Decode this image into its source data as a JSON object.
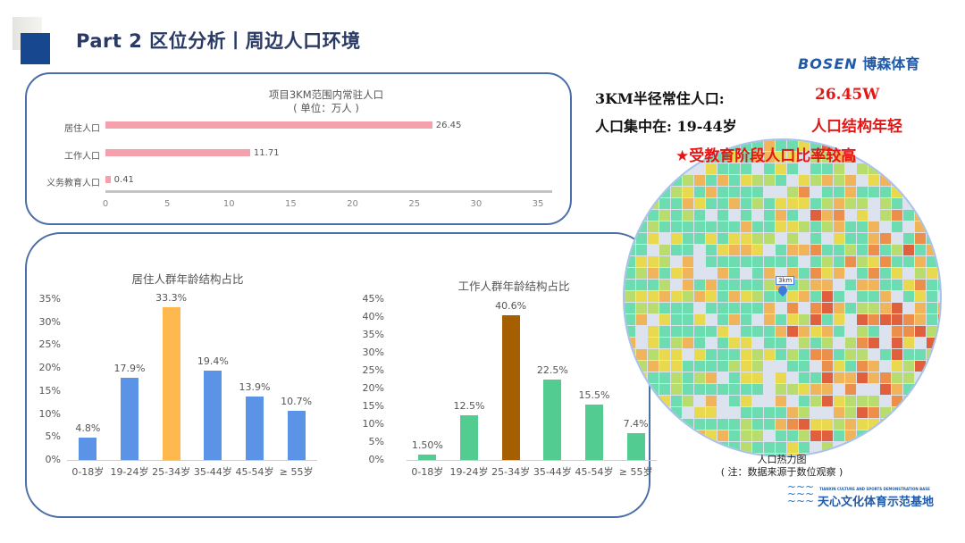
{
  "header": {
    "title": "Part 2 区位分析丨周边人口环境"
  },
  "logo_top": {
    "text": "BOSEN",
    "cn": "博森体育",
    "color": "#1f5aa8"
  },
  "bar_chart": {
    "title": "项目3KM范围内常驻人口",
    "subtitle": "( 单位：万人 )",
    "type": "bar",
    "orientation": "horizontal",
    "categories": [
      "居住人口",
      "工作人口",
      "义务教育人口"
    ],
    "values": [
      26.45,
      11.71,
      0.41
    ],
    "value_labels": [
      "26.45",
      "11.71",
      "0.41"
    ],
    "xlim": [
      0,
      35
    ],
    "ticks": [
      "0",
      "5",
      "10",
      "15",
      "20",
      "25",
      "30",
      "35"
    ],
    "color": "#f4a1ad"
  },
  "chart_data": [
    {
      "type": "bar",
      "title": "居住人群年龄结构占比",
      "categories": [
        "0-18岁",
        "19-24岁",
        "25-34岁",
        "35-44岁",
        "45-54岁",
        "≥ 55岁"
      ],
      "values": [
        4.8,
        17.9,
        33.3,
        19.4,
        13.9,
        10.7
      ],
      "value_labels": [
        "4.8%",
        "17.9%",
        "33.3%",
        "19.4%",
        "13.9%",
        "10.7%"
      ],
      "ylim": [
        0,
        35
      ],
      "yticks": [
        "0%",
        "5%",
        "10%",
        "15%",
        "20%",
        "25%",
        "30%",
        "35%"
      ],
      "colors": [
        "#5b93e6",
        "#5b93e6",
        "#ffb84d",
        "#5b93e6",
        "#5b93e6",
        "#5b93e6"
      ]
    },
    {
      "type": "bar",
      "title": "工作人群年龄结构占比",
      "categories": [
        "0-18岁",
        "19-24岁",
        "25-34岁",
        "35-44岁",
        "45-54岁",
        "≥ 55岁"
      ],
      "values": [
        1.5,
        12.5,
        40.6,
        22.5,
        15.5,
        7.4
      ],
      "value_labels": [
        "1.50%",
        "12.5%",
        "40.6%",
        "22.5%",
        "15.5%",
        "7.4%"
      ],
      "ylim": [
        0,
        45
      ],
      "yticks": [
        "0%",
        "5%",
        "10%",
        "15%",
        "20%",
        "25%",
        "30%",
        "35%",
        "40%",
        "45%"
      ],
      "colors": [
        "#52cc91",
        "#52cc91",
        "#a65f00",
        "#52cc91",
        "#52cc91",
        "#52cc91"
      ]
    }
  ],
  "info": {
    "line1_label": "3KM半径常住人口:",
    "line1_value": "26.45W",
    "line2_label": "人口集中在: 19-44岁",
    "line2_value": "人口结构年轻",
    "highlight": "★受教育阶段人口比率较高"
  },
  "map": {
    "marker_label": "3km",
    "caption": "人口热力图",
    "note": "( 注：数据来源于数位观察 )",
    "colors": [
      "#6ddcb0",
      "#6ddcb0",
      "#6ddcb0",
      "#b8dc6e",
      "#e8d94e",
      "#f0b45a",
      "#eb8f4a",
      "#e0603e"
    ]
  },
  "logo_bottom": {
    "en": "TIANXIN CULTURE AND SPORTS DEMONSTRATION BASE",
    "cn": "天心文化体育示范基地"
  }
}
